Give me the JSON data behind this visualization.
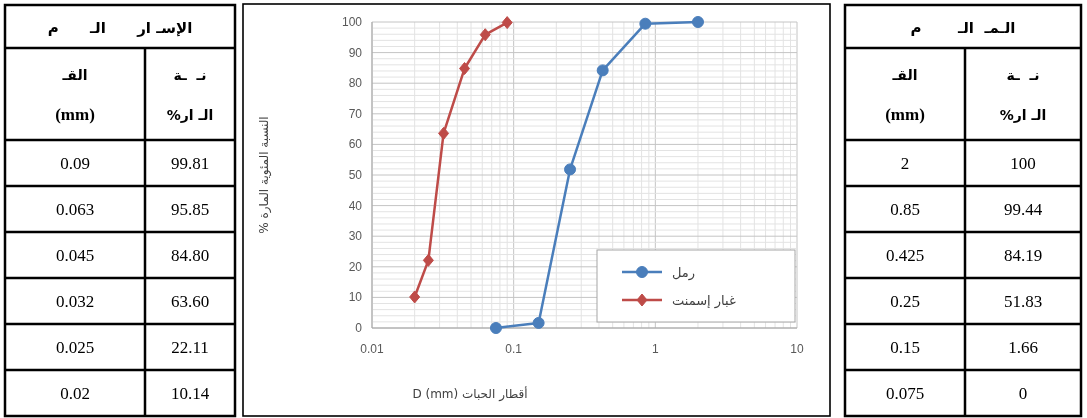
{
  "chart_data": [
    {
      "type": "other",
      "annotations": [
        "الإسـ ار      الـ      م",
        "القـ",
        "(mm)",
        "نـ  ـة",
        "الـ ار%",
        "0.09",
        "99.81",
        "0.063",
        "95.85",
        "0.045",
        "84.80",
        "0.032",
        "63.60",
        "0.025",
        "22.11",
        "0.02",
        "10.14"
      ]
    },
    {
      "type": "line",
      "xlabel": "أقطار الحبات D (mm)",
      "ylabel": "النسبة المئوية المارة %",
      "log": "x",
      "xlim": [
        0.01,
        10
      ],
      "xticks": [
        0.01,
        0.1,
        1,
        10
      ],
      "ylim": [
        0,
        100
      ],
      "yticks": [
        0,
        10,
        20,
        30,
        40,
        50,
        60,
        70,
        80,
        90,
        100
      ],
      "grid": true,
      "legend": "bottom right",
      "series": [
        {
          "name": "رمل",
          "color": "#4a7ebb",
          "marker": "circle",
          "x": [
            2,
            0.85,
            0.425,
            0.25,
            0.15,
            0.075
          ],
          "values": [
            100,
            99.44,
            84.19,
            51.83,
            1.66,
            0
          ]
        },
        {
          "name": "غبار إسمنت",
          "color": "#be4b48",
          "marker": "diamond",
          "x": [
            0.09,
            0.063,
            0.045,
            0.032,
            0.025,
            0.02
          ],
          "values": [
            99.81,
            95.85,
            84.8,
            63.6,
            22.11,
            10.14
          ]
        }
      ]
    },
    {
      "type": "other",
      "annotations": [
        "الـمـ  الـ       م",
        "القـ",
        "(mm)",
        "نـ  ـة",
        "الـ ار%",
        "2",
        "100",
        "0.85",
        "99.44",
        "0.425",
        "84.19",
        "0.25",
        "51.83",
        "0.15",
        "1.66",
        "0.075",
        "0"
      ]
    }
  ]
}
